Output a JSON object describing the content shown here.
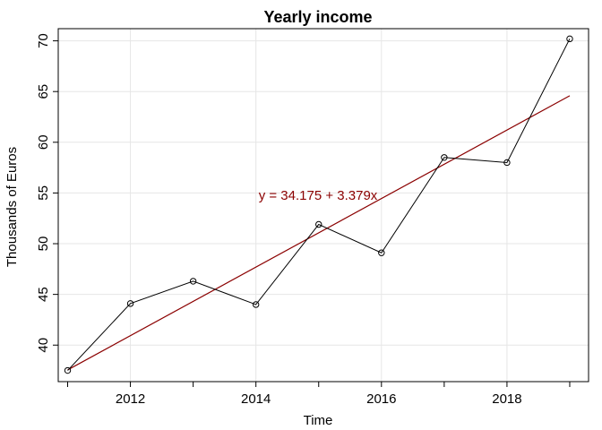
{
  "chart_data": {
    "type": "line",
    "title": "Yearly income",
    "xlabel": "Time",
    "ylabel": "Thousands of Euros",
    "xlim": [
      2010.85,
      2019.3
    ],
    "ylim": [
      36.4,
      71.2
    ],
    "x_ticks": [
      2012,
      2014,
      2016,
      2018
    ],
    "y_ticks": [
      40,
      45,
      50,
      55,
      60,
      65,
      70
    ],
    "grid": true,
    "series": [
      {
        "x": [
          2011,
          2012,
          2013,
          2014,
          2015,
          2016,
          2017,
          2018,
          2019
        ],
        "values": [
          37.5,
          44.1,
          46.3,
          44.0,
          51.9,
          49.1,
          58.5,
          58.0,
          70.2
        ],
        "markers": "open-circle",
        "color": "#000000"
      }
    ],
    "trend_line": {
      "intercept": 34.175,
      "slope": 3.379,
      "x_start": 2011,
      "x_end": 2019,
      "color": "#8b0000",
      "label": "y = 34.175 + 3.379x"
    }
  }
}
